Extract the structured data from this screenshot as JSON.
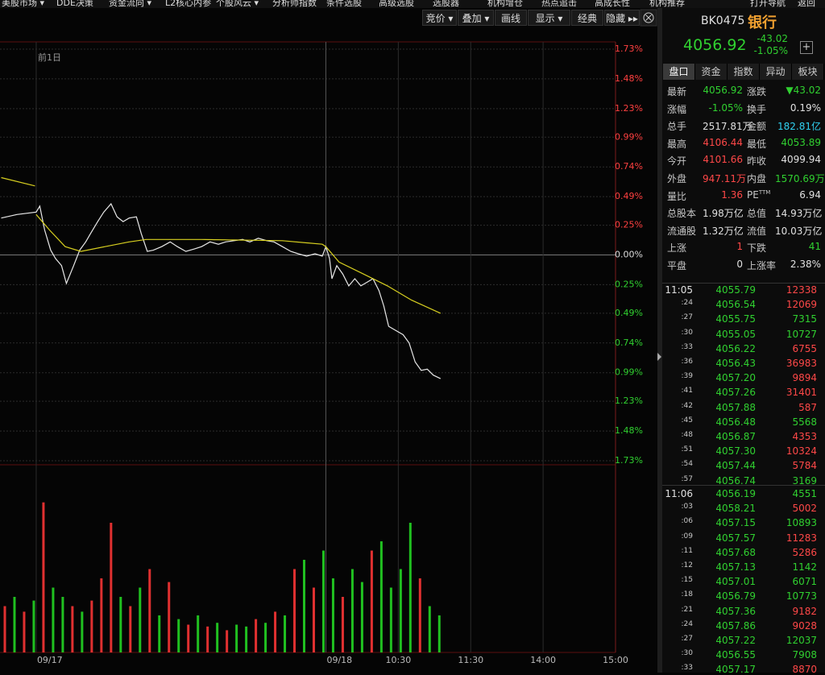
{
  "menu": [
    "美股市场 ▾",
    "DDE决策",
    "资金流向 ▾",
    "L2核心内参",
    "个股风云 ▾",
    "分析师指数",
    "条件选股",
    "高级选股",
    "选股器",
    "机构增仓",
    "热点追击",
    "高成长性",
    "机构推荐",
    "打开导航",
    "返回"
  ],
  "toolbar": [
    "竞价 ▾",
    "叠加 ▾",
    "画线",
    "显示 ▾",
    "经典",
    "隐藏 ▸▸"
  ],
  "chart": {
    "type": "line",
    "label": "前1日",
    "xlim": [
      -270,
      240
    ],
    "xticks": [
      {
        "value": -240,
        "label": "09/17"
      },
      {
        "value": 0,
        "label": "09/18"
      },
      {
        "value": 60,
        "label": "10:30"
      },
      {
        "value": 120,
        "label": "11:30"
      },
      {
        "value": 180,
        "label": "14:00"
      },
      {
        "value": 240,
        "label": "15:00"
      }
    ],
    "ylim": [
      -1.73,
      1.73
    ],
    "yticks": [
      {
        "value": 1.73,
        "label": "1.73%"
      },
      {
        "value": 1.48,
        "label": "1.48%"
      },
      {
        "value": 1.23,
        "label": "1.23%"
      },
      {
        "value": 0.99,
        "label": "0.99%"
      },
      {
        "value": 0.74,
        "label": "0.74%"
      },
      {
        "value": 0.49,
        "label": "0.49%"
      },
      {
        "value": 0.25,
        "label": "0.25%"
      },
      {
        "value": 0,
        "label": "0.00%"
      },
      {
        "value": -0.25,
        "label": "0.25%"
      },
      {
        "value": -0.49,
        "label": "0.49%"
      },
      {
        "value": -0.74,
        "label": "0.74%"
      },
      {
        "value": -0.99,
        "label": "0.99%"
      },
      {
        "value": -1.23,
        "label": "1.23%"
      },
      {
        "value": -1.48,
        "label": "1.48%"
      },
      {
        "value": -1.73,
        "label": "1.73%"
      }
    ],
    "series": [
      {
        "color": "#e8e8e8",
        "x": [
          -269,
          -256,
          -240,
          -237,
          -233,
          -228,
          -224,
          -219,
          -215,
          -209,
          -204,
          -199,
          -195,
          -189,
          -184,
          -178,
          -173,
          -168,
          -163,
          -157,
          -153,
          -148,
          -143,
          -136,
          -129,
          -123,
          -116,
          -109,
          -103,
          -96,
          -89,
          -83,
          -76,
          -69,
          -63,
          -56,
          -49,
          -43,
          -36,
          -29,
          -23,
          -16,
          -9,
          -3,
          0,
          3,
          5,
          9,
          14,
          19,
          24,
          29,
          34,
          39,
          44,
          48,
          52,
          57,
          64,
          69,
          74,
          79,
          84,
          89,
          95
        ],
        "values": [
          0.31,
          0.34,
          0.36,
          0.41,
          0.21,
          0.04,
          -0.03,
          -0.09,
          -0.24,
          -0.09,
          0.04,
          0.11,
          0.18,
          0.28,
          0.36,
          0.43,
          0.32,
          0.28,
          0.31,
          0.32,
          0.18,
          0.03,
          0.04,
          0.07,
          0.11,
          0.07,
          0.03,
          0.05,
          0.07,
          0.11,
          0.09,
          0.11,
          0.12,
          0.13,
          0.11,
          0.14,
          0.12,
          0.11,
          0.07,
          0.03,
          0.01,
          -0.01,
          0.01,
          -0.01,
          0.07,
          -0.03,
          -0.2,
          -0.09,
          -0.16,
          -0.26,
          -0.2,
          -0.26,
          -0.23,
          -0.2,
          -0.3,
          -0.43,
          -0.6,
          -0.63,
          -0.67,
          -0.74,
          -0.9,
          -0.97,
          -0.96,
          -1.01,
          -1.04
        ]
      },
      {
        "color": "#d8d020",
        "x": [
          -269,
          -241,
          -240.5,
          -240,
          -229,
          -216,
          -203,
          -183,
          -163,
          -149,
          -103,
          -36,
          -3,
          0,
          11,
          31,
          51,
          71,
          95
        ],
        "values": [
          0.65,
          0.58,
          null,
          0.34,
          0.21,
          0.07,
          0.03,
          0.07,
          0.11,
          0.13,
          0.13,
          0.12,
          0.09,
          0.07,
          -0.06,
          -0.16,
          -0.26,
          -0.38,
          -0.49
        ]
      }
    ],
    "volume": {
      "type": "bar",
      "ylim": [
        0,
        100
      ],
      "x": [
        -266,
        -258,
        -250,
        -242,
        -234,
        -226,
        -218,
        -210,
        -202,
        -194,
        -186,
        -178,
        -170,
        -162,
        -154,
        -146,
        -138,
        -130,
        -122,
        -114,
        -106,
        -98,
        -90,
        -82,
        -74,
        -66,
        -58,
        -50,
        -42,
        -34,
        -26,
        -18,
        -10,
        -2,
        6,
        14,
        22,
        30,
        38,
        46,
        54,
        62,
        70,
        78,
        86,
        94
      ],
      "values": [
        25,
        30,
        22,
        28,
        81,
        35,
        30,
        25,
        22,
        28,
        40,
        70,
        30,
        25,
        35,
        45,
        20,
        38,
        18,
        15,
        20,
        14,
        16,
        12,
        15,
        14,
        18,
        16,
        22,
        20,
        45,
        50,
        35,
        55,
        40,
        30,
        45,
        38,
        55,
        60,
        35,
        45,
        70,
        40,
        25,
        20
      ],
      "colors": [
        "#e03030",
        "#20c020",
        "#e03030",
        "#20c020",
        "#e03030",
        "#20c020",
        "#20c020",
        "#e03030",
        "#20c020",
        "#e03030",
        "#e03030",
        "#e03030",
        "#20c020",
        "#e03030",
        "#20c020",
        "#e03030",
        "#20c020",
        "#e03030",
        "#20c020",
        "#e03030",
        "#20c020",
        "#e03030",
        "#20c020",
        "#e03030",
        "#20c020",
        "#20c020",
        "#e03030",
        "#20c020",
        "#e03030",
        "#20c020",
        "#e03030",
        "#20c020",
        "#e03030",
        "#20c020",
        "#20c020",
        "#e03030",
        "#20c020",
        "#20c020",
        "#e03030",
        "#20c020",
        "#20c020",
        "#20c020",
        "#20c020",
        "#e03030",
        "#20c020",
        "#20c020"
      ]
    }
  },
  "quote": {
    "code": "BK0475",
    "name": "银行",
    "price": "4056.92",
    "change": "-43.02",
    "pct": "-1.05%",
    "tabs": [
      "盘口",
      "资金",
      "指数",
      "异动",
      "板块"
    ],
    "rows": [
      [
        "最新",
        "4056.92",
        "涨跌",
        "▼43.02"
      ],
      [
        "涨幅",
        "-1.05%",
        "换手",
        "0.19%"
      ],
      [
        "总手",
        "2517.81万",
        "金额",
        "182.81亿"
      ],
      [
        "最高",
        "4106.44",
        "最低",
        "4053.89"
      ],
      [
        "今开",
        "4101.66",
        "昨收",
        "4099.94"
      ],
      [
        "外盘",
        "947.11万",
        "内盘",
        "1570.69万"
      ],
      [
        "量比",
        "1.36",
        "PE",
        "6.94"
      ],
      [
        "总股本",
        "1.98万亿",
        "总值",
        "14.93万亿"
      ],
      [
        "流通股",
        "1.32万亿",
        "流值",
        "10.03万亿"
      ],
      [
        "上涨",
        "1",
        "下跌",
        "41"
      ],
      [
        "平盘",
        "0",
        "上涨率",
        "2.38%"
      ]
    ],
    "pe_sup": "TTM"
  },
  "ticks": [
    [
      [
        "11:05",
        "4055.79",
        "12338",
        "#ff4848"
      ],
      [
        ":24",
        "4056.54",
        "12069",
        "#ff4848"
      ],
      [
        ":27",
        "4055.75",
        "7315",
        "#30d030"
      ],
      [
        ":30",
        "4055.05",
        "10727",
        "#30d030"
      ],
      [
        ":33",
        "4056.22",
        "6755",
        "#ff4848"
      ],
      [
        ":36",
        "4056.43",
        "36983",
        "#ff4848"
      ],
      [
        ":39",
        "4057.20",
        "9894",
        "#ff4848"
      ],
      [
        ":41",
        "4057.26",
        "31401",
        "#ff4848"
      ],
      [
        ":42",
        "4057.88",
        "587",
        "#ff4848"
      ],
      [
        ":45",
        "4056.48",
        "5568",
        "#30d030"
      ],
      [
        ":48",
        "4056.87",
        "4353",
        "#ff4848"
      ],
      [
        ":51",
        "4057.30",
        "10324",
        "#ff4848"
      ],
      [
        ":54",
        "4057.44",
        "5784",
        "#ff4848"
      ],
      [
        ":57",
        "4056.74",
        "3169",
        "#30d030"
      ]
    ],
    [
      [
        "11:06",
        "4056.19",
        "4551",
        "#30d030"
      ],
      [
        ":03",
        "4058.21",
        "5002",
        "#ff4848"
      ],
      [
        ":06",
        "4057.15",
        "10893",
        "#30d030"
      ],
      [
        ":09",
        "4057.57",
        "11283",
        "#ff4848"
      ],
      [
        ":11",
        "4057.68",
        "5286",
        "#ff4848"
      ],
      [
        ":12",
        "4057.13",
        "1142",
        "#30d030"
      ],
      [
        ":15",
        "4057.01",
        "6071",
        "#30d030"
      ],
      [
        ":18",
        "4056.79",
        "10773",
        "#30d030"
      ],
      [
        ":21",
        "4057.36",
        "9182",
        "#ff4848"
      ],
      [
        ":24",
        "4057.86",
        "9028",
        "#ff4848"
      ],
      [
        ":27",
        "4057.22",
        "12037",
        "#30d030"
      ],
      [
        ":30",
        "4056.55",
        "7908",
        "#30d030"
      ],
      [
        ":33",
        "4057.17",
        "8870",
        "#ff4848"
      ]
    ]
  ]
}
